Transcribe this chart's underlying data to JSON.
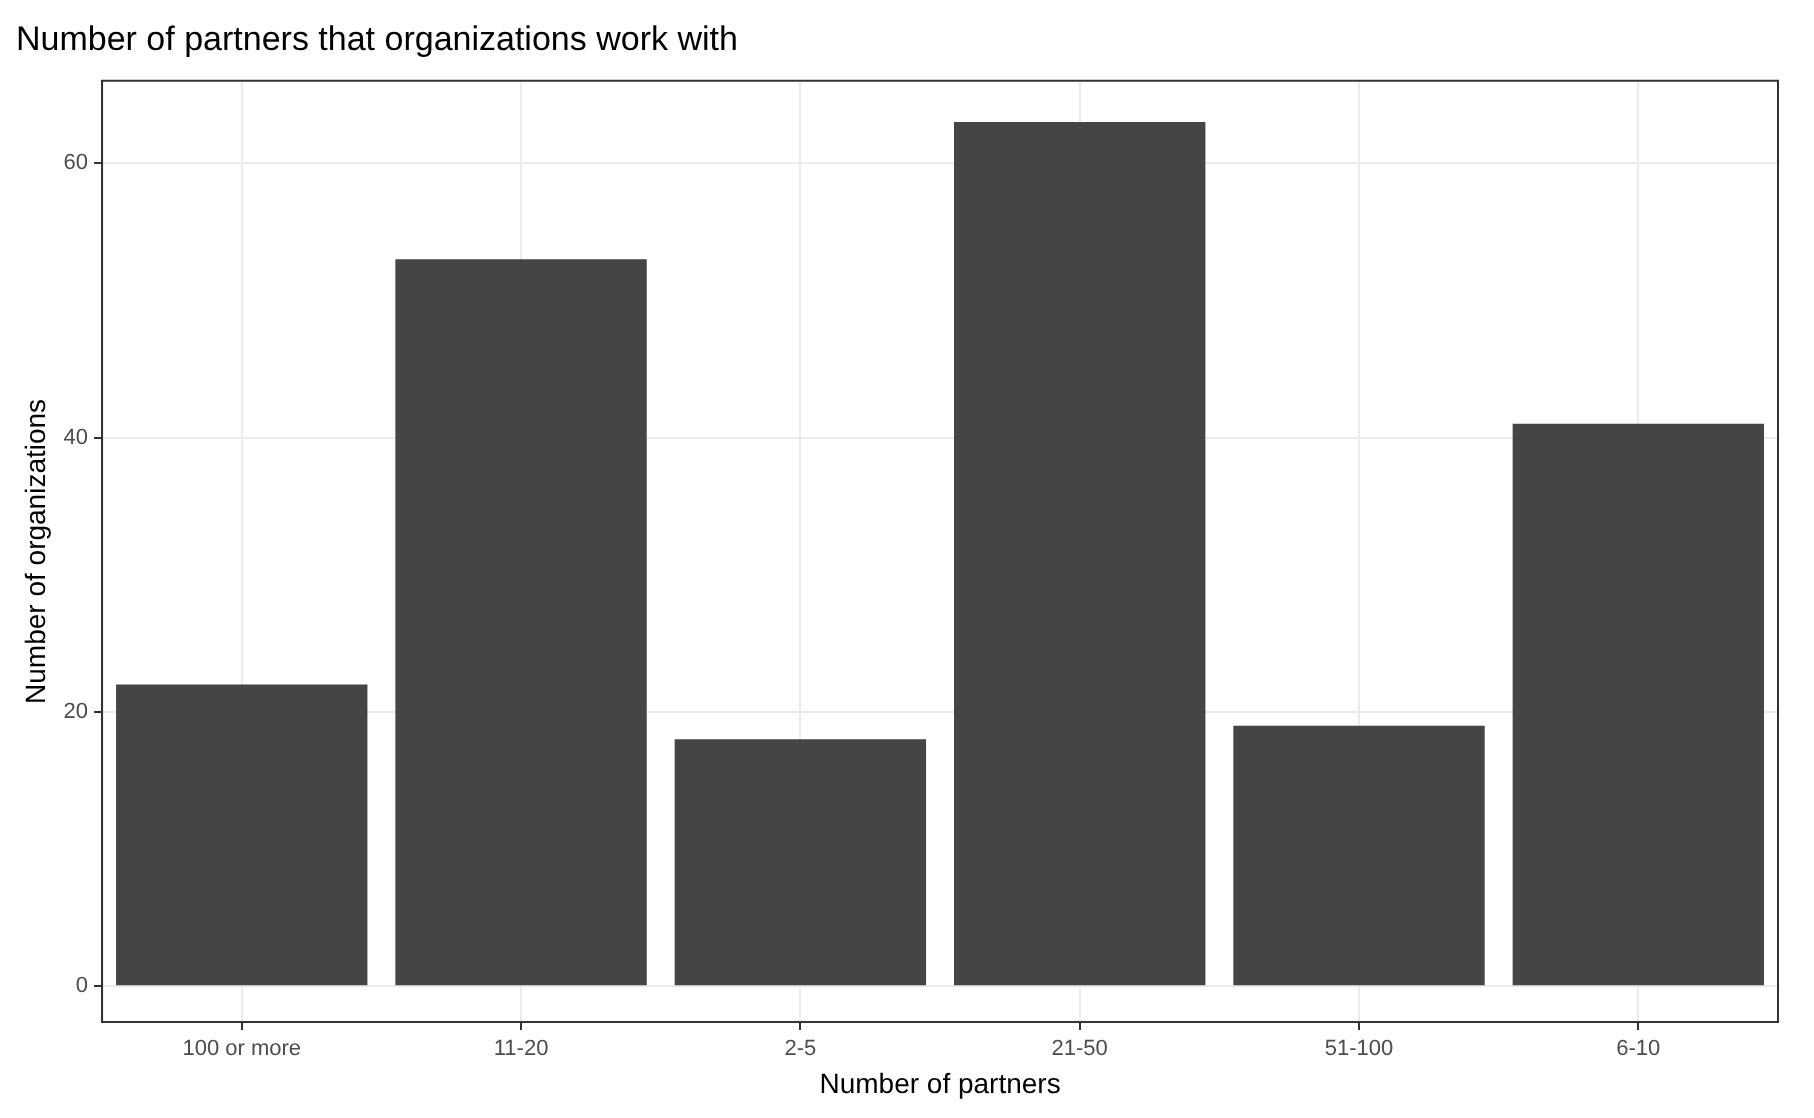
{
  "chart_data": {
    "type": "bar",
    "title": "Number of partners that organizations work with",
    "xlabel": "Number of partners",
    "ylabel": "Number of organizations",
    "categories": [
      "100 or more",
      "11-20",
      "2-5",
      "21-50",
      "51-100",
      "6-10"
    ],
    "values": [
      22,
      53,
      18,
      63,
      19,
      41
    ],
    "color": "#454545",
    "ylim": [
      -2.6,
      66
    ],
    "yticks": [
      0,
      20,
      40,
      60
    ],
    "grid": true
  }
}
